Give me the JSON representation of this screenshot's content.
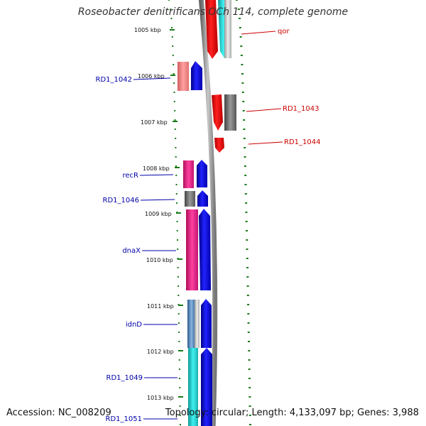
{
  "title": "Roseobacter denitrificans OCh 114, complete genome",
  "footer": {
    "accession": "Accession: NC_008209",
    "stats": "Topology: circular; Length: 4,133,097 bp; Genes: 3,988"
  },
  "colors": {
    "tick": "#1a7a1a",
    "backbone": "#808080",
    "left_label": "#0000aa",
    "right_label": "#cc0000",
    "forward_arrow": "#0000ee",
    "reverse_arrow": "#ee0000"
  },
  "kbp_ticks": [
    "1005 kbp",
    "1006 kbp",
    "1007 kbp",
    "1008 kbp",
    "1009 kbp",
    "1010 kbp",
    "1011 kbp",
    "1012 kbp",
    "1013 kbp"
  ],
  "genes_left": [
    {
      "name": "RD1_1042",
      "box_color": "#f08080"
    },
    {
      "name": "recR",
      "box_color": "#e8208a"
    },
    {
      "name": "RD1_1046",
      "box_color": "#707070"
    },
    {
      "name": "dnaX",
      "box_color": "#e8208a"
    },
    {
      "name": "idnD",
      "box_color": "#4a7ab0"
    },
    {
      "name": "RD1_1049",
      "box_color": "#20c8c8"
    },
    {
      "name": "RD1_1051",
      "box_color": "#20c8c8"
    }
  ],
  "genes_right": [
    {
      "name": "qor",
      "box_color": "#bbbbbb"
    },
    {
      "name": "RD1_1043",
      "box_color": "#707070"
    },
    {
      "name": "RD1_1044",
      "box_color": "#ee0000"
    }
  ]
}
